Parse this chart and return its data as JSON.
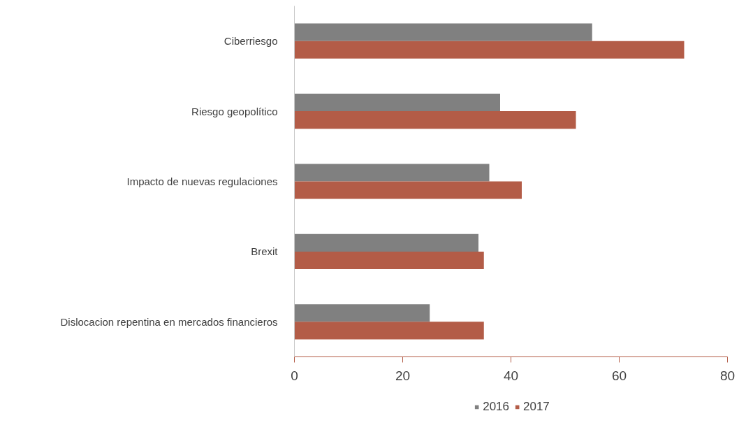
{
  "chart_data": {
    "type": "bar",
    "orientation": "horizontal",
    "categories": [
      "Ciberriesgo",
      "Riesgo geopolítico",
      "Impacto de nuevas regulaciones",
      "Brexit",
      "Dislocacion repentina en mercados financieros"
    ],
    "series": [
      {
        "name": "2016",
        "color": "#808080",
        "values": [
          55,
          38,
          36,
          34,
          25
        ]
      },
      {
        "name": "2017",
        "color": "#b35c47",
        "values": [
          72,
          52,
          42,
          35,
          35
        ]
      }
    ],
    "xlim": [
      0,
      80
    ],
    "xticks": [
      0,
      20,
      40,
      60,
      80
    ],
    "grid": false,
    "legend": "bottom"
  }
}
